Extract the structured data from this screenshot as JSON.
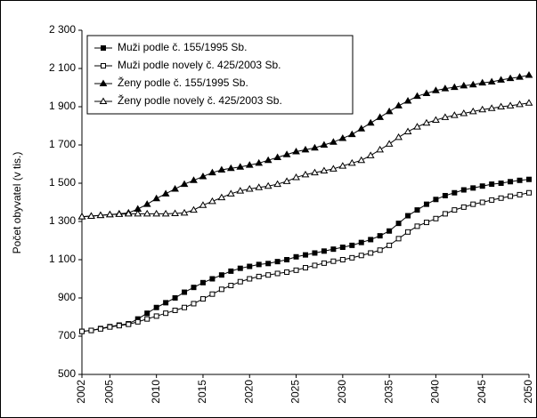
{
  "chart_data": {
    "type": "line",
    "ylabel": "Počet obyvatel (v tis.)",
    "x": [
      2002,
      2003,
      2004,
      2005,
      2006,
      2007,
      2008,
      2009,
      2010,
      2011,
      2012,
      2013,
      2014,
      2015,
      2016,
      2017,
      2018,
      2019,
      2020,
      2021,
      2022,
      2023,
      2024,
      2025,
      2026,
      2027,
      2028,
      2029,
      2030,
      2031,
      2032,
      2033,
      2034,
      2035,
      2036,
      2037,
      2038,
      2039,
      2040,
      2041,
      2042,
      2043,
      2044,
      2045,
      2046,
      2047,
      2048,
      2049,
      2050
    ],
    "xlim": [
      2002,
      2050
    ],
    "xticks": [
      2002,
      2005,
      2010,
      2015,
      2020,
      2025,
      2030,
      2035,
      2040,
      2045,
      2050
    ],
    "ylim": [
      500,
      2300
    ],
    "yticks": [
      500,
      700,
      900,
      {
        "value": 1100,
        "label": "1 100"
      },
      {
        "value": 1300,
        "label": "1 300"
      },
      {
        "value": 1500,
        "label": "1 500"
      },
      {
        "value": 1700,
        "label": "1 700"
      },
      {
        "value": 1900,
        "label": "1 900"
      },
      {
        "value": 2100,
        "label": "2 100"
      },
      {
        "value": 2300,
        "label": "2 300"
      }
    ],
    "legend": "upper left",
    "series": [
      {
        "name": "Muži podle č. 155/1995 Sb.",
        "color": "#000000",
        "marker": "square",
        "filled": true,
        "values": [
          725,
          730,
          740,
          750,
          758,
          765,
          790,
          820,
          850,
          875,
          900,
          930,
          955,
          980,
          1000,
          1020,
          1040,
          1055,
          1065,
          1075,
          1080,
          1090,
          1100,
          1115,
          1125,
          1135,
          1145,
          1155,
          1165,
          1175,
          1190,
          1205,
          1225,
          1250,
          1290,
          1330,
          1360,
          1390,
          1415,
          1435,
          1450,
          1465,
          1475,
          1485,
          1495,
          1500,
          1508,
          1515,
          1520
        ]
      },
      {
        "name": "Muži podle novely č. 425/2003 Sb.",
        "color": "#000000",
        "marker": "square",
        "filled": false,
        "values": [
          725,
          730,
          738,
          748,
          755,
          762,
          775,
          790,
          805,
          820,
          835,
          850,
          870,
          895,
          920,
          945,
          965,
          985,
          1000,
          1012,
          1020,
          1028,
          1035,
          1045,
          1058,
          1070,
          1082,
          1092,
          1100,
          1110,
          1122,
          1135,
          1150,
          1175,
          1210,
          1245,
          1275,
          1295,
          1315,
          1340,
          1360,
          1375,
          1390,
          1400,
          1412,
          1422,
          1432,
          1440,
          1450
        ]
      },
      {
        "name": "Ženy podle č. 155/1995 Sb.",
        "color": "#000000",
        "marker": "triangle",
        "filled": true,
        "values": [
          1325,
          1328,
          1332,
          1336,
          1340,
          1345,
          1365,
          1390,
          1420,
          1445,
          1470,
          1495,
          1515,
          1535,
          1555,
          1570,
          1578,
          1585,
          1595,
          1605,
          1620,
          1635,
          1650,
          1665,
          1675,
          1685,
          1700,
          1715,
          1735,
          1755,
          1785,
          1815,
          1845,
          1875,
          1905,
          1930,
          1955,
          1970,
          1985,
          1995,
          2002,
          2010,
          2015,
          2025,
          2030,
          2040,
          2048,
          2055,
          2065
        ]
      },
      {
        "name": "Ženy podle novely č. 425/2003 Sb.",
        "color": "#000000",
        "marker": "triangle",
        "filled": false,
        "values": [
          1325,
          1328,
          1332,
          1336,
          1338,
          1340,
          1340,
          1340,
          1340,
          1340,
          1342,
          1345,
          1360,
          1385,
          1405,
          1425,
          1445,
          1460,
          1470,
          1478,
          1485,
          1495,
          1510,
          1530,
          1545,
          1555,
          1565,
          1575,
          1590,
          1605,
          1620,
          1645,
          1675,
          1705,
          1740,
          1770,
          1795,
          1815,
          1830,
          1845,
          1855,
          1865,
          1875,
          1885,
          1892,
          1900,
          1905,
          1912,
          1920
        ]
      }
    ]
  }
}
